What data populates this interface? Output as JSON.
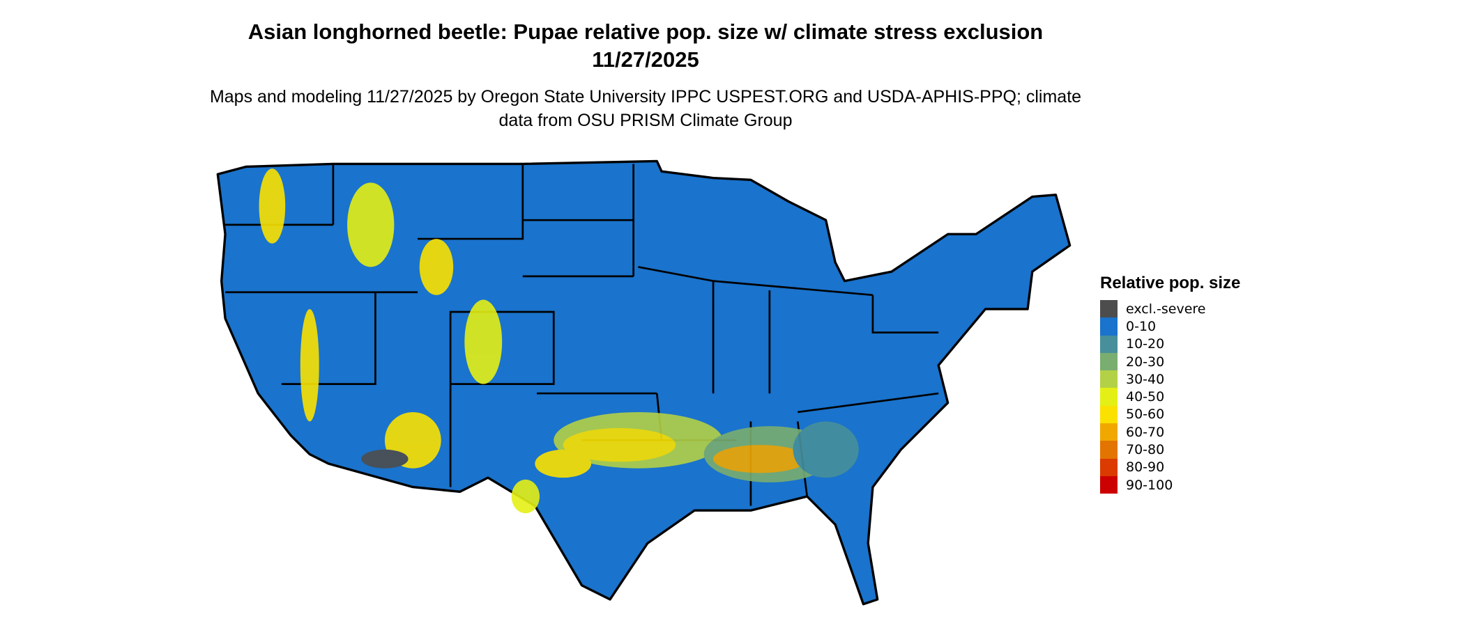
{
  "title": "Asian longhorned beetle: Pupae relative pop. size w/ climate stress exclusion 11/27/2025",
  "subtitle": "Maps and modeling 11/27/2025 by Oregon State University IPPC USPEST.ORG and USDA-APHIS-PPQ; climate data from OSU PRISM Climate Group",
  "legend": {
    "title": "Relative pop. size",
    "items": [
      {
        "label": "excl.-severe",
        "color": "#4d4d4d"
      },
      {
        "label": "0-10",
        "color": "#1a73cc"
      },
      {
        "label": "10-20",
        "color": "#478f9b"
      },
      {
        "label": "20-30",
        "color": "#7aad70"
      },
      {
        "label": "30-40",
        "color": "#b3d146"
      },
      {
        "label": "40-50",
        "color": "#e4ef15"
      },
      {
        "label": "50-60",
        "color": "#fae100"
      },
      {
        "label": "60-70",
        "color": "#f0a800"
      },
      {
        "label": "70-80",
        "color": "#e37400"
      },
      {
        "label": "80-90",
        "color": "#db3a00"
      },
      {
        "label": "90-100",
        "color": "#cc0000"
      }
    ]
  }
}
